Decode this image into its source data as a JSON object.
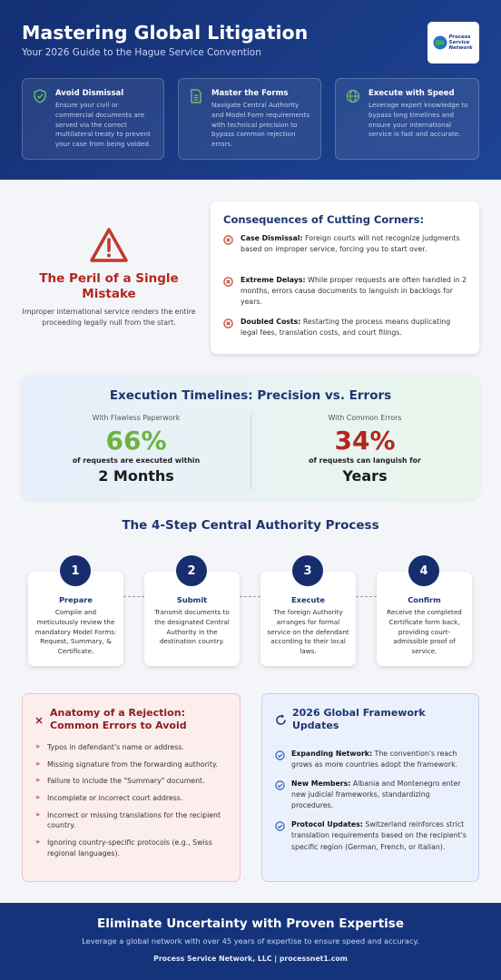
{
  "header": {
    "title": "Mastering Global Litigation",
    "subtitle": "Your 2026 Guide to the Hague Service Convention",
    "logo": "Process Service Network",
    "cards": [
      {
        "title": "Avoid Dismissal",
        "text": "Ensure your civil or commercial documents are served via the correct multilateral treaty to prevent your case from being voided."
      },
      {
        "title": "Master the Forms",
        "text": "Navigate Central Authority and Model Form requirements with technical precision to bypass common rejection errors."
      },
      {
        "title": "Execute with Speed",
        "text": "Leverage expert knowledge to bypass long timelines and ensure your international service is fast and accurate."
      }
    ]
  },
  "peril": {
    "title": "The Peril of a Single Mistake",
    "text": "Improper international service renders the entire proceeding legally null from the start."
  },
  "consequences": {
    "title": "Consequences of Cutting Corners:",
    "items": [
      {
        "label": "Case Dismissal:",
        "text": "Foreign courts will not recognize judgments based on improper service, forcing you to start over."
      },
      {
        "label": "Extreme Delays:",
        "text": "While proper requests are often handled in 2 months, errors cause documents to languish in backlogs for years."
      },
      {
        "label": "Doubled Costs:",
        "text": "Restarting the process means duplicating legal fees, translation costs, and court filings."
      }
    ]
  },
  "timelines": {
    "title": "Execution Timelines: Precision vs. Errors",
    "columns": [
      {
        "label": "With Flawless Paperwork",
        "stat": "66%",
        "caption": "of requests are executed within",
        "period": "2 Months"
      },
      {
        "label": "With Common Errors",
        "stat": "34%",
        "caption": "of requests can languish for",
        "period": "Years"
      }
    ]
  },
  "process": {
    "title": "The 4-Step Central Authority Process",
    "steps": [
      {
        "number": "1",
        "title": "Prepare",
        "text": "Compile and meticulously review the mandatory Model Forms: Request, Summary, & Certificate."
      },
      {
        "number": "2",
        "title": "Submit",
        "text": "Transmit documents to the designated Central Authority in the destination country."
      },
      {
        "number": "3",
        "title": "Execute",
        "text": "The foreign Authority arranges for formal service on the defendant according to their local laws."
      },
      {
        "number": "4",
        "title": "Confirm",
        "text": "Receive the completed Certificate form back, providing court-admissible proof of service."
      }
    ]
  },
  "rejection": {
    "title": "Anatomy of a Rejection: Common Errors to Avoid",
    "items": [
      "Typos in defendant's name or address.",
      "Missing signature from the forwarding authority.",
      "Failure to include the \"Summary\" document.",
      "Incomplete or incorrect court address.",
      "Incorrect or missing translations for the recipient country.",
      "Ignoring country-specific protocols (e.g., Swiss regional languages)."
    ]
  },
  "updates": {
    "title": "2026 Global Framework Updates",
    "items": [
      {
        "label": "Expanding Network:",
        "text": "The convention's reach grows as more countries adopt the framework."
      },
      {
        "label": "New Members:",
        "text": "Albania and Montenegro enter new judicial frameworks, standardizing procedures."
      },
      {
        "label": "Protocol Updates:",
        "text": "Switzerland reinforces strict translation requirements based on the recipient's specific region (German, French, or Italian)."
      }
    ]
  },
  "footer": {
    "title": "Eliminate Uncertainty with Proven Expertise",
    "text": "Leverage a global network with over 45 years of expertise to ensure speed and accuracy.",
    "company": "Process Service Network, LLC | processnet1.com"
  }
}
